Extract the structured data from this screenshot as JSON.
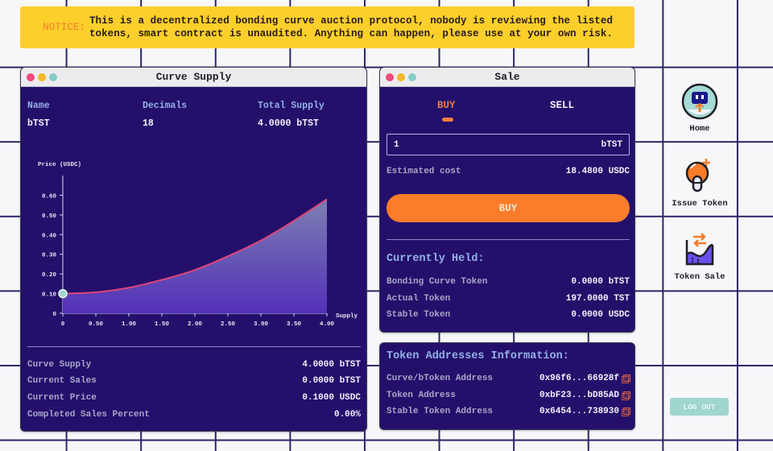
{
  "notice": {
    "label": "NOTICE:",
    "text": "This is a decentralized bonding curve auction protocol, nobody is reviewing the listed tokens, smart contract is unaudited. Anything can happen, please use at your own risk."
  },
  "curve_window": {
    "title": "Curve Supply",
    "meta": [
      {
        "header": "Name",
        "value": "bTST"
      },
      {
        "header": "Decimals",
        "value": "18"
      },
      {
        "header": "Total Supply",
        "value": "4.0000 bTST"
      }
    ],
    "stats": [
      {
        "label": "Curve Supply",
        "value": "4.0000 bTST"
      },
      {
        "label": "Current Sales",
        "value": "0.0000 bTST"
      },
      {
        "label": "Current Price",
        "value": "0.1000 USDC"
      },
      {
        "label": "Completed Sales Percent",
        "value": "0.00%"
      }
    ]
  },
  "chart_data": {
    "type": "area",
    "title": "",
    "ylabel": "Price (USDC)",
    "xlabel": "Supply",
    "xlim": [
      0,
      4
    ],
    "ylim": [
      0,
      0.7
    ],
    "x_ticks": [
      "0",
      "0.50",
      "1.00",
      "1.50",
      "2.00",
      "2.50",
      "3.00",
      "3.50",
      "4.00"
    ],
    "y_ticks": [
      "0",
      "0.10",
      "0.20",
      "0.30",
      "0.40",
      "0.50",
      "0.60"
    ],
    "x": [
      0,
      0.5,
      1.0,
      1.5,
      2.0,
      2.5,
      3.0,
      3.5,
      4.0
    ],
    "values": [
      0.1,
      0.107,
      0.13,
      0.17,
      0.22,
      0.29,
      0.37,
      0.47,
      0.58
    ],
    "current_point": {
      "x": 0,
      "y": 0.1
    },
    "line_color": "#e0457b",
    "fill_color": "#5a46c0",
    "grid": false
  },
  "sale_window": {
    "title": "Sale",
    "tabs": [
      {
        "label": "BUY",
        "active": true
      },
      {
        "label": "SELL",
        "active": false
      }
    ],
    "amount_value": "1",
    "amount_unit": "bTST",
    "estimated_cost_label": "Estimated cost",
    "estimated_cost_value": "18.4800 USDC",
    "buy_button": "BUY",
    "held_title": "Currently Held:",
    "held": [
      {
        "label": "Bonding Curve Token",
        "value": "0.0000 bTST"
      },
      {
        "label": "Actual Token",
        "value": "197.0000 TST"
      },
      {
        "label": "Stable Token",
        "value": "0.0000 USDC"
      }
    ]
  },
  "addresses_window": {
    "title": "Token Addresses Information:",
    "items": [
      {
        "label": "Curve/bToken Address",
        "value": "0x96f6...66928f"
      },
      {
        "label": "Token Address",
        "value": "0xbF23...bD85AD"
      },
      {
        "label": "Stable Token Address",
        "value": "0x6454...738930"
      }
    ]
  },
  "nav": {
    "items": [
      {
        "label": "Home",
        "icon": "robot-icon"
      },
      {
        "label": "Issue Token",
        "icon": "issue-token-icon"
      },
      {
        "label": "Token Sale",
        "icon": "token-sale-icon"
      }
    ],
    "logout": "LOG OUT"
  },
  "colors": {
    "panel": "#24106b",
    "accent_orange": "#fb7c2a",
    "notice_yellow": "#fccf2b",
    "heading_blue": "#93b1e6",
    "logout_teal": "#9fd6ce"
  }
}
